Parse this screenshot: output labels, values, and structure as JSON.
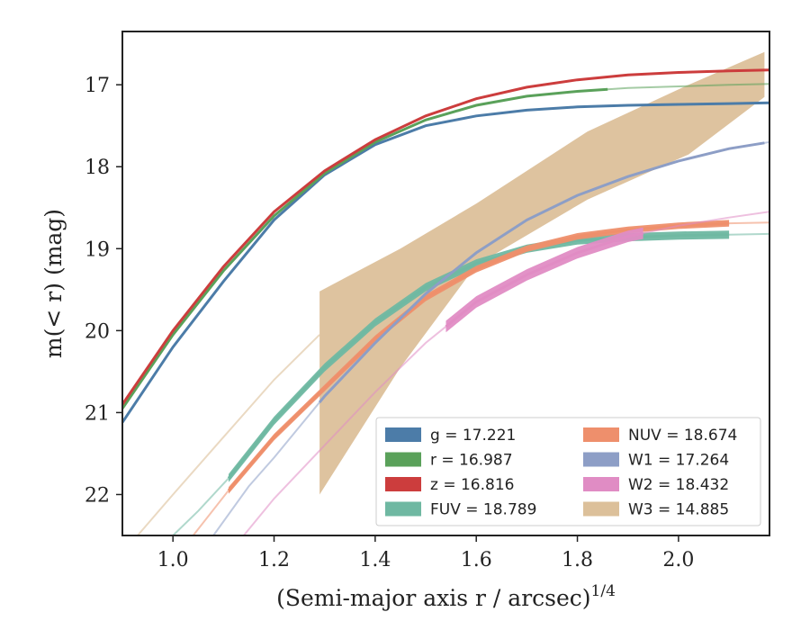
{
  "chart_data": {
    "type": "line",
    "xlabel_main": "(Semi-major axis r / arcsec)",
    "xlabel_sup": "1/4",
    "ylabel": "m(< r) (mag)",
    "xlim": [
      0.9,
      2.18
    ],
    "ylim": [
      22.5,
      16.35
    ],
    "y_inverted": true,
    "xticks": [
      "1.0",
      "1.2",
      "1.4",
      "1.6",
      "1.8",
      "2.0"
    ],
    "xtick_values": [
      1.0,
      1.2,
      1.4,
      1.6,
      1.8,
      2.0
    ],
    "yticks": [
      "17",
      "18",
      "19",
      "20",
      "21",
      "22"
    ],
    "ytick_values": [
      17,
      18,
      19,
      20,
      21,
      22
    ],
    "grid": false,
    "legend_position": "lower-right",
    "series": [
      {
        "name": "g = 17.221",
        "color": "#4c7ca8",
        "kind": "line",
        "x": [
          0.9,
          1.0,
          1.1,
          1.2,
          1.3,
          1.4,
          1.5,
          1.6,
          1.7,
          1.8,
          1.9,
          2.0,
          2.1,
          2.18
        ],
        "y": [
          21.12,
          20.2,
          19.4,
          18.65,
          18.1,
          17.73,
          17.5,
          17.38,
          17.31,
          17.27,
          17.25,
          17.24,
          17.23,
          17.22
        ],
        "solid_until": 2.18
      },
      {
        "name": "r = 16.987",
        "color": "#5aa15a",
        "kind": "line",
        "x": [
          0.9,
          1.0,
          1.1,
          1.2,
          1.3,
          1.4,
          1.5,
          1.6,
          1.7,
          1.8,
          1.9,
          2.0,
          2.1,
          2.18
        ],
        "y": [
          20.95,
          20.05,
          19.27,
          18.6,
          18.08,
          17.7,
          17.43,
          17.25,
          17.14,
          17.08,
          17.04,
          17.02,
          17.0,
          16.99
        ],
        "solid_until": 1.86
      },
      {
        "name": "z = 16.816",
        "color": "#cc3d3d",
        "kind": "line",
        "x": [
          0.9,
          1.0,
          1.1,
          1.2,
          1.3,
          1.4,
          1.5,
          1.6,
          1.7,
          1.8,
          1.9,
          2.0,
          2.1,
          2.18
        ],
        "y": [
          20.9,
          20.0,
          19.22,
          18.55,
          18.05,
          17.67,
          17.38,
          17.17,
          17.03,
          16.94,
          16.88,
          16.85,
          16.83,
          16.82
        ],
        "solid_until": 2.18
      },
      {
        "name": "FUV = 18.789",
        "color": "#6fb8a2",
        "kind": "line",
        "x": [
          1.0,
          1.05,
          1.11,
          1.2,
          1.3,
          1.4,
          1.5,
          1.6,
          1.7,
          1.8,
          1.9,
          2.0,
          2.1,
          2.18
        ],
        "y": [
          22.5,
          22.2,
          21.8,
          21.1,
          20.45,
          19.9,
          19.47,
          19.18,
          19.0,
          18.9,
          18.86,
          18.84,
          18.83,
          18.82
        ],
        "band_from": 1.11,
        "band_until": 2.1,
        "band_width": 0.1
      },
      {
        "name": "NUV = 18.674",
        "color": "#ee8f6c",
        "kind": "line",
        "x": [
          1.04,
          1.11,
          1.2,
          1.3,
          1.4,
          1.5,
          1.6,
          1.7,
          1.8,
          1.9,
          2.0,
          2.1,
          2.18
        ],
        "y": [
          22.5,
          21.95,
          21.3,
          20.7,
          20.1,
          19.6,
          19.25,
          19.0,
          18.85,
          18.77,
          18.72,
          18.69,
          18.68
        ],
        "band_from": 1.11,
        "band_until": 2.1,
        "band_width": 0.08
      },
      {
        "name": "W1 = 17.264",
        "color": "#8d9ec6",
        "kind": "line",
        "x": [
          1.08,
          1.15,
          1.2,
          1.3,
          1.4,
          1.5,
          1.6,
          1.7,
          1.8,
          1.9,
          2.0,
          2.1,
          2.18
        ],
        "y": [
          22.5,
          21.9,
          21.55,
          20.8,
          20.15,
          19.55,
          19.05,
          18.65,
          18.35,
          18.12,
          17.93,
          17.78,
          17.7
        ],
        "solid_from": 1.29,
        "solid_until": 2.17
      },
      {
        "name": "W2 = 18.432",
        "color": "#e08cc4",
        "kind": "line",
        "x": [
          1.14,
          1.2,
          1.3,
          1.4,
          1.5,
          1.54,
          1.6,
          1.7,
          1.8,
          1.9,
          2.0,
          2.1,
          2.18
        ],
        "y": [
          22.5,
          22.05,
          21.4,
          20.75,
          20.15,
          19.95,
          19.65,
          19.32,
          19.05,
          18.85,
          18.72,
          18.62,
          18.55
        ],
        "band_from": 1.54,
        "band_until": 1.93,
        "band_width": 0.14
      },
      {
        "name": "W3 = 14.885",
        "color": "#dcc09a",
        "kind": "band",
        "x": [
          1.29,
          1.45,
          1.6,
          1.82,
          2.02,
          2.17
        ],
        "y_upper": [
          19.52,
          19.0,
          18.45,
          17.57,
          17.0,
          16.6
        ],
        "y_lower": [
          22.0,
          20.45,
          19.2,
          18.4,
          17.85,
          17.15
        ],
        "faint_x": [
          0.93,
          1.0,
          1.1,
          1.2,
          1.29
        ],
        "faint_y": [
          22.5,
          22.0,
          21.3,
          20.6,
          20.05
        ]
      }
    ]
  }
}
